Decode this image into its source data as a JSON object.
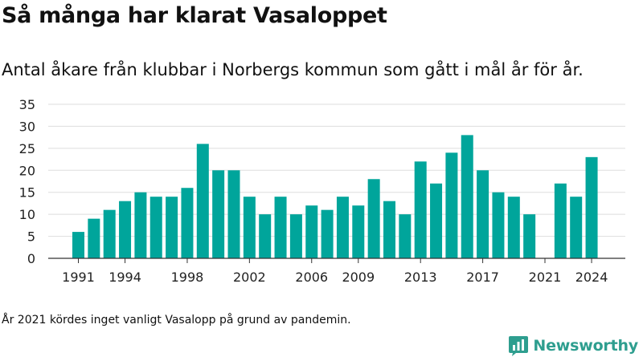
{
  "header": {
    "title": "Så många har klarat Vasaloppet",
    "subtitle": "Antal åkare från klubbar i Norbergs kommun som gått i mål år för år."
  },
  "footer": {
    "note": "År 2021 kördes inget vanligt Vasalopp på grund av pandemin.",
    "brand": "Newsworthy",
    "brand_icon": "bar-chart-logo-icon"
  },
  "colors": {
    "bar": "#00a59b",
    "grid": "#dddddd",
    "axis": "#333333",
    "brand": "#2e9e8f"
  },
  "chart_data": {
    "type": "bar",
    "title": "Så många har klarat Vasaloppet",
    "xlabel": "",
    "ylabel": "",
    "ylim": [
      0,
      35
    ],
    "yticks": [
      0,
      5,
      10,
      15,
      20,
      25,
      30,
      35
    ],
    "xticks": [
      "1991",
      "1994",
      "1998",
      "2002",
      "2006",
      "2009",
      "2013",
      "2017",
      "2021",
      "2024"
    ],
    "grid": true,
    "categories": [
      1991,
      1992,
      1993,
      1994,
      1995,
      1996,
      1997,
      1998,
      1999,
      2000,
      2001,
      2002,
      2003,
      2004,
      2005,
      2006,
      2007,
      2008,
      2009,
      2010,
      2011,
      2012,
      2013,
      2014,
      2015,
      2016,
      2017,
      2018,
      2019,
      2020,
      2021,
      2022,
      2023,
      2024
    ],
    "values": [
      6,
      9,
      11,
      13,
      15,
      14,
      14,
      16,
      26,
      20,
      20,
      14,
      10,
      14,
      10,
      12,
      11,
      14,
      12,
      18,
      13,
      10,
      22,
      17,
      24,
      28,
      20,
      15,
      14,
      10,
      0,
      17,
      14,
      23
    ]
  }
}
